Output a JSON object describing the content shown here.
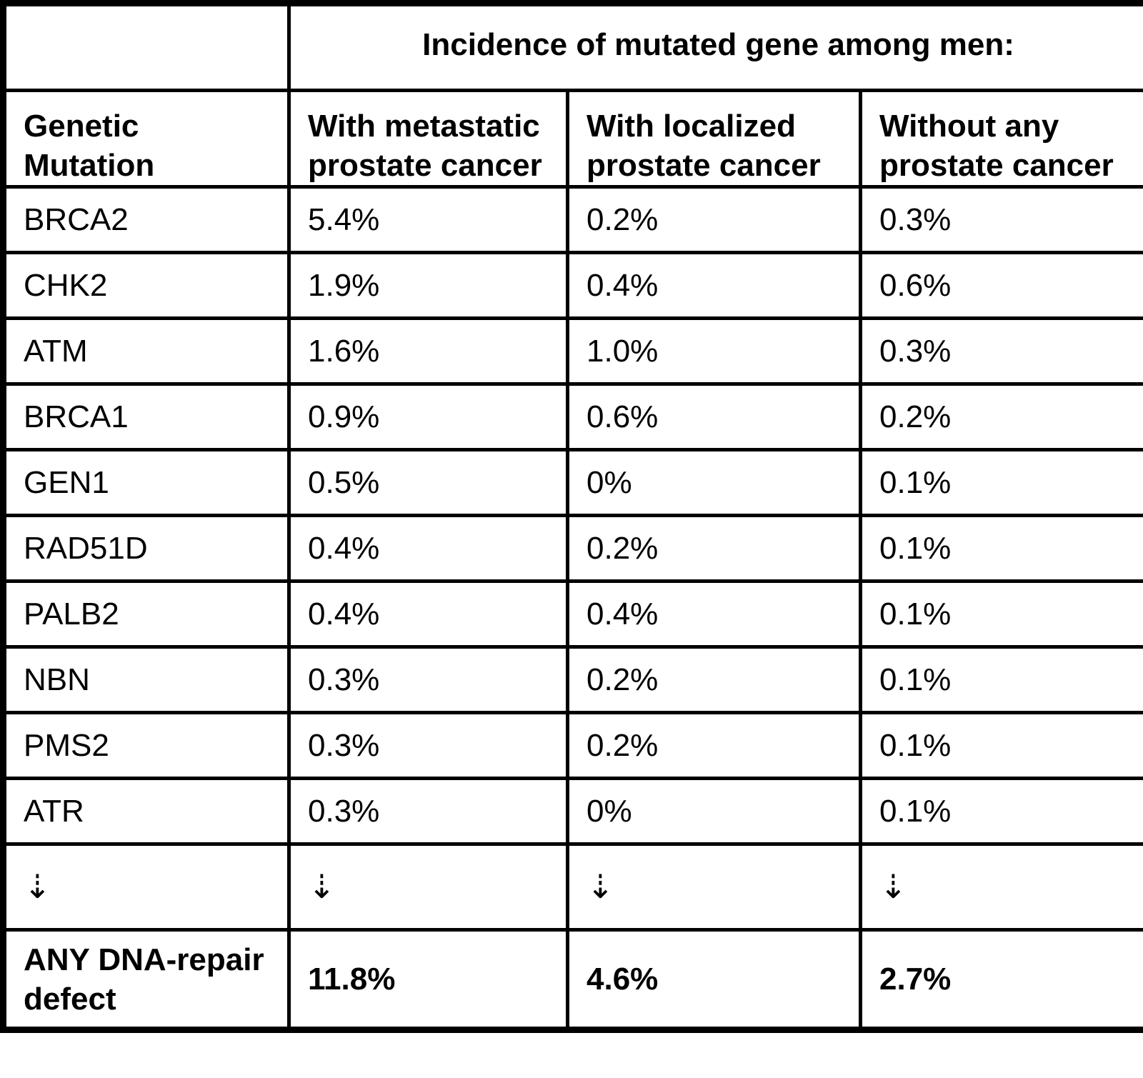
{
  "colors": {
    "border": "#000000",
    "text": "#000000",
    "background": "#ffffff"
  },
  "table": {
    "span_header": "Incidence of mutated gene among men:",
    "columns": [
      "Genetic Mutation",
      "With metastatic prostate cancer",
      "With localized prostate cancer",
      "Without any prostate cancer"
    ],
    "rows": [
      {
        "gene": "BRCA2",
        "metastatic": "5.4%",
        "localized": "0.2%",
        "without": "0.3%"
      },
      {
        "gene": "CHK2",
        "metastatic": "1.9%",
        "localized": "0.4%",
        "without": "0.6%"
      },
      {
        "gene": "ATM",
        "metastatic": "1.6%",
        "localized": "1.0%",
        "without": "0.3%"
      },
      {
        "gene": "BRCA1",
        "metastatic": "0.9%",
        "localized": "0.6%",
        "without": "0.2%"
      },
      {
        "gene": "GEN1",
        "metastatic": "0.5%",
        "localized": "0%",
        "without": "0.1%"
      },
      {
        "gene": "RAD51D",
        "metastatic": "0.4%",
        "localized": "0.2%",
        "without": "0.1%"
      },
      {
        "gene": "PALB2",
        "metastatic": "0.4%",
        "localized": "0.4%",
        "without": "0.1%"
      },
      {
        "gene": "NBN",
        "metastatic": "0.3%",
        "localized": "0.2%",
        "without": "0.1%"
      },
      {
        "gene": "PMS2",
        "metastatic": "0.3%",
        "localized": "0.2%",
        "without": "0.1%"
      },
      {
        "gene": "ATR",
        "metastatic": "0.3%",
        "localized": "0%",
        "without": "0.1%"
      }
    ],
    "continuation_symbol": "⇣",
    "summary_row": {
      "gene": "ANY DNA-repair defect",
      "metastatic": "11.8%",
      "localized": "4.6%",
      "without": "2.7%"
    }
  }
}
